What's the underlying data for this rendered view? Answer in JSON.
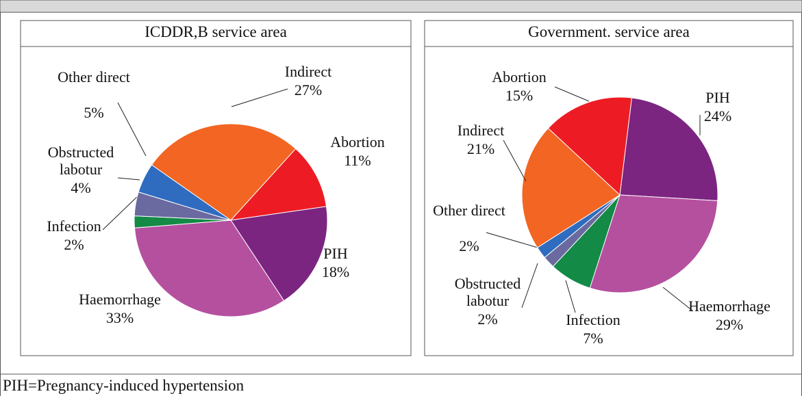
{
  "chart_data": [
    {
      "type": "pie",
      "title": "ICDDR,B service area",
      "categories": [
        "Indirect",
        "Abortion",
        "PIH",
        "Haemorrhage",
        "Infection",
        "Obstructed labotur",
        "Other direct"
      ],
      "values": [
        27,
        11,
        18,
        33,
        2,
        4,
        5
      ],
      "value_labels": [
        "27%",
        "11%",
        "18%",
        "33%",
        "2%",
        "4%",
        "5%"
      ],
      "colors": [
        "#f26522",
        "#ed1c24",
        "#7b2581",
        "#b5509f",
        "#138a46",
        "#6a6aa0",
        "#2f6cc0"
      ]
    },
    {
      "type": "pie",
      "title": "Government. service area",
      "categories": [
        "PIH",
        "Haemorrhage",
        "Infection",
        "Obstructed labotur",
        "Other direct",
        "Indirect",
        "Abortion"
      ],
      "values": [
        24,
        29,
        7,
        2,
        2,
        21,
        15
      ],
      "value_labels": [
        "24%",
        "29%",
        "7%",
        "2%",
        "2%",
        "21%",
        "15%"
      ],
      "colors": [
        "#7b2581",
        "#b5509f",
        "#138a46",
        "#6a6aa0",
        "#2f6cc0",
        "#f26522",
        "#ed1c24"
      ]
    }
  ],
  "footnote": "PIH=Pregnancy-induced hypertension"
}
